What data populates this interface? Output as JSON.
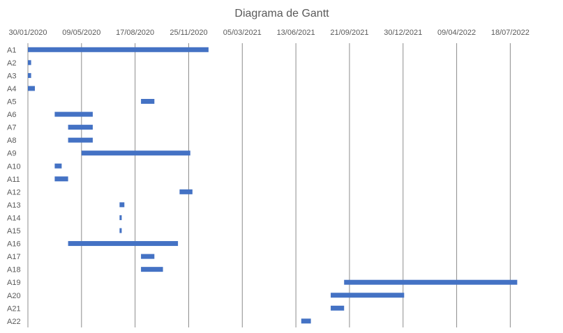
{
  "chart_data": {
    "type": "bar",
    "orientation": "horizontal-gantt",
    "title": "Diagrama de Gantt",
    "xlabel": "",
    "ylabel": "",
    "x_axis_position": "top",
    "grid": true,
    "xlim": [
      "30/01/2020",
      "14/10/2022"
    ],
    "x_ticks": [
      "30/01/2020",
      "09/05/2020",
      "17/08/2020",
      "25/11/2020",
      "05/03/2021",
      "13/06/2021",
      "21/09/2021",
      "30/12/2021",
      "09/04/2022",
      "18/07/2022"
    ],
    "categories": [
      "A1",
      "A2",
      "A3",
      "A4",
      "A5",
      "A6",
      "A7",
      "A8",
      "A9",
      "A10",
      "A11",
      "A12",
      "A13",
      "A14",
      "A15",
      "A16",
      "A17",
      "A18",
      "A19",
      "A20",
      "A21",
      "A22"
    ],
    "series": [
      {
        "start": [
          "30/01/2020",
          "30/01/2020",
          "30/01/2020",
          "30/01/2020",
          "28/08/2020",
          "20/03/2020",
          "14/04/2020",
          "14/04/2020",
          "09/05/2020",
          "20/03/2020",
          "20/03/2020",
          "08/11/2020",
          "19/07/2020",
          "19/07/2020",
          "19/07/2020",
          "14/04/2020",
          "28/08/2020",
          "28/08/2020",
          "11/09/2021",
          "17/08/2021",
          "17/08/2021",
          "23/06/2021"
        ],
        "end": [
          "01/01/2021",
          "05/02/2020",
          "05/02/2020",
          "12/02/2020",
          "22/09/2020",
          "30/05/2020",
          "30/05/2020",
          "30/05/2020",
          "28/11/2020",
          "02/04/2020",
          "14/04/2020",
          "02/12/2020",
          "28/07/2020",
          "23/07/2020",
          "23/07/2020",
          "05/11/2020",
          "22/09/2020",
          "08/10/2020",
          "31/07/2022",
          "01/01/2022",
          "11/09/2021",
          "11/07/2021"
        ]
      }
    ],
    "colors": {
      "bar": "#4472c4",
      "grid": "#8c8c8c",
      "text": "#595959"
    }
  }
}
